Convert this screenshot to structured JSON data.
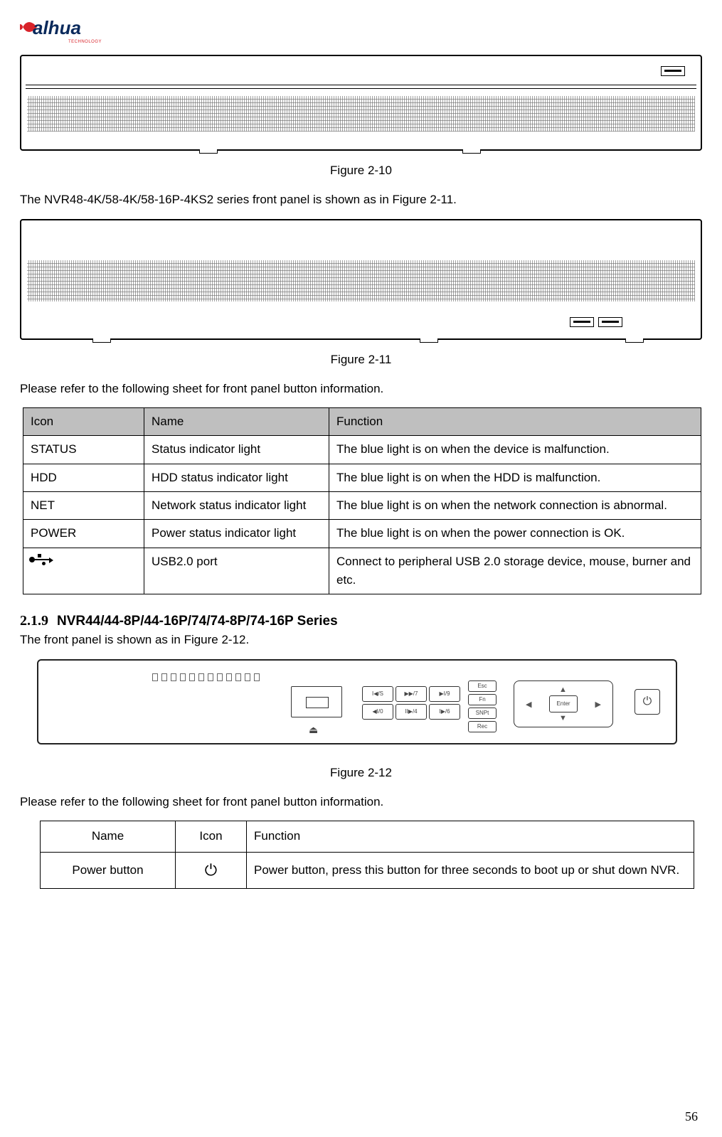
{
  "logo_text": "alhua",
  "logo_subtext": "TECHNOLOGY",
  "figure_2_10_caption": "Figure 2-10",
  "paragraph_1": "The NVR48-4K/58-4K/58-16P-4KS2 series front panel is shown as in Figure 2-11.",
  "figure_2_11_caption": "Figure 2-11",
  "paragraph_2": "Please refer to the following sheet for front panel button information.",
  "table1": {
    "headers": {
      "icon": "Icon",
      "name": "Name",
      "function": "Function"
    },
    "rows": [
      {
        "icon": "STATUS",
        "name": "Status indicator light",
        "function": "The blue light is on when the device is malfunction."
      },
      {
        "icon": "HDD",
        "name": "HDD status indicator light",
        "function": "The blue light is on when the HDD is malfunction."
      },
      {
        "icon": "NET",
        "name": "Network status indicator light",
        "function": "The blue light is on when the network connection is abnormal."
      },
      {
        "icon": "POWER",
        "name": "Power status indicator light",
        "function": "The blue light is on when the power connection is OK."
      },
      {
        "icon": "__usb_glyph__",
        "name": "USB2.0 port",
        "function": "Connect to peripheral USB 2.0 storage device, mouse, burner and etc."
      }
    ]
  },
  "heading_2_1_9_num": "2.1.9",
  "heading_2_1_9_title": "NVR44/44-8P/44-16P/74/74-8P/74-16P Series",
  "paragraph_3": "The front panel is shown as in Figure 2-12.",
  "figure_2_12_caption": "Figure 2-12",
  "paragraph_4": "Please refer to the following sheet for front panel button information.",
  "table2": {
    "headers": {
      "name": "Name",
      "icon": "Icon",
      "function": "Function"
    },
    "rows": [
      {
        "name": "Power button",
        "icon": "⏻",
        "function": "Power button, press this button for three seconds to boot up or shut down NVR."
      }
    ]
  },
  "page_number": "56",
  "colors": {
    "table_header_bg": "#bfbfbf",
    "border": "#000000",
    "logo_red": "#d8232a"
  }
}
